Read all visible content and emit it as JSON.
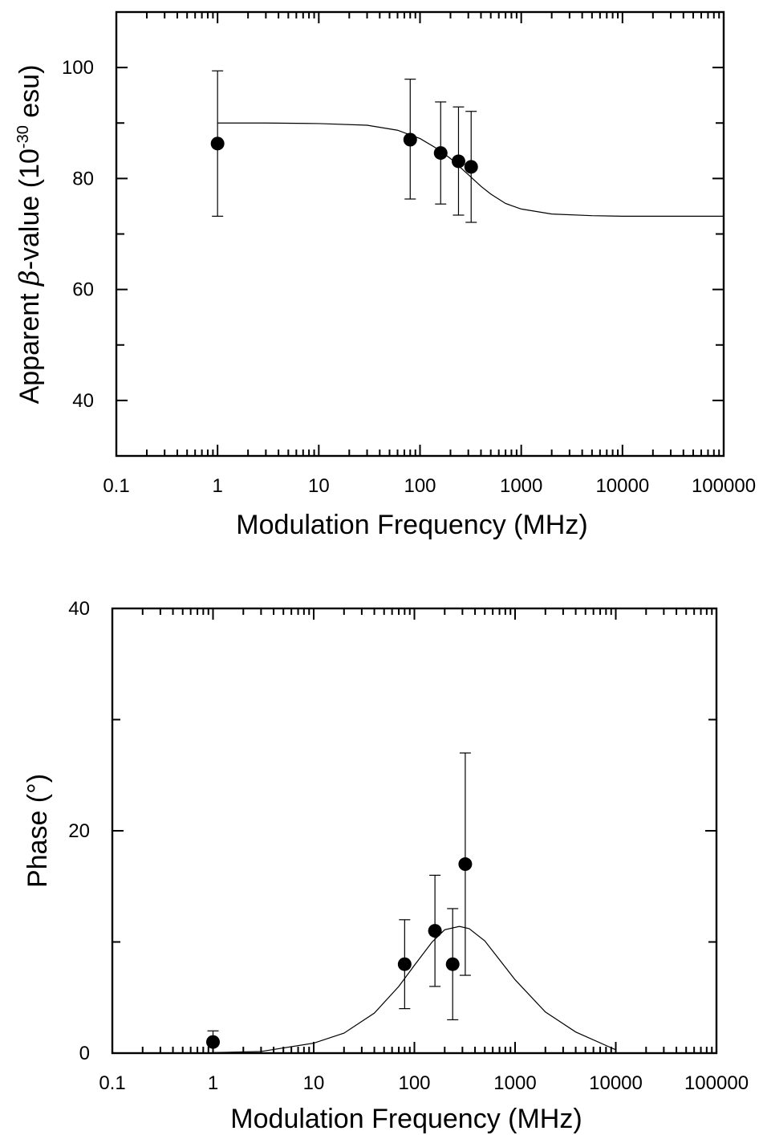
{
  "chart_data": [
    {
      "type": "scatter",
      "title": "",
      "xlabel": "Modulation Frequency (MHz)",
      "ylabel_parts": {
        "pre": "Apparent ",
        "beta": "β",
        "mid": "-value (10",
        "exp": "-30",
        "post": " esu)"
      },
      "x_scale": "log",
      "xlim": [
        0.1,
        100000
      ],
      "ylim": [
        30,
        110
      ],
      "x_tick_labels": [
        "0.1",
        "1",
        "10",
        "100",
        "1000",
        "10000",
        "100000"
      ],
      "y_tick_labels": [
        "40",
        "60",
        "80",
        "100"
      ],
      "grid": false,
      "legend": "none",
      "points": [
        {
          "x": 1,
          "y": 86.3,
          "err_low": 73.2,
          "err_high": 99.4
        },
        {
          "x": 80,
          "y": 87.0,
          "err_low": 76.3,
          "err_high": 97.9
        },
        {
          "x": 160,
          "y": 84.6,
          "err_low": 75.4,
          "err_high": 93.8
        },
        {
          "x": 240,
          "y": 83.1,
          "err_low": 73.4,
          "err_high": 92.9
        },
        {
          "x": 320,
          "y": 82.1,
          "err_low": 72.1,
          "err_high": 92.1
        }
      ],
      "fit": {
        "x": [
          1,
          3,
          10,
          30,
          60,
          100,
          150,
          200,
          250,
          300,
          400,
          500,
          700,
          1000,
          2000,
          5000,
          10000,
          100000
        ],
        "y": [
          90.0,
          90.0,
          89.9,
          89.6,
          88.7,
          87.2,
          85.3,
          83.6,
          82.0,
          80.7,
          78.6,
          77.2,
          75.5,
          74.5,
          73.6,
          73.3,
          73.2,
          73.2
        ]
      }
    },
    {
      "type": "scatter",
      "title": "",
      "xlabel": "Modulation Frequency (MHz)",
      "ylabel": "Phase (°)",
      "x_scale": "log",
      "xlim": [
        0.1,
        100000
      ],
      "ylim": [
        0,
        40
      ],
      "x_tick_labels": [
        "0.1",
        "1",
        "10",
        "100",
        "1000",
        "10000",
        "100000"
      ],
      "y_tick_labels": [
        "0",
        "20",
        "40"
      ],
      "grid": false,
      "legend": "none",
      "points": [
        {
          "x": 1,
          "y": 1.0,
          "err_low": 0.0,
          "err_high": 2.0
        },
        {
          "x": 80,
          "y": 8.0,
          "err_low": 4.0,
          "err_high": 12.0
        },
        {
          "x": 160,
          "y": 11.0,
          "err_low": 6.0,
          "err_high": 16.0
        },
        {
          "x": 240,
          "y": 8.0,
          "err_low": 3.0,
          "err_high": 13.0
        },
        {
          "x": 320,
          "y": 17.0,
          "err_low": 7.0,
          "err_high": 27.0
        }
      ],
      "fit": {
        "x": [
          1,
          3,
          10,
          20,
          40,
          70,
          100,
          150,
          200,
          280,
          350,
          500,
          700,
          1000,
          2000,
          4000,
          10000
        ],
        "y": [
          0.05,
          0.15,
          0.9,
          1.8,
          3.6,
          6.0,
          7.9,
          10.0,
          11.1,
          11.4,
          11.2,
          10.1,
          8.4,
          6.6,
          3.7,
          1.9,
          0.3
        ]
      }
    }
  ]
}
